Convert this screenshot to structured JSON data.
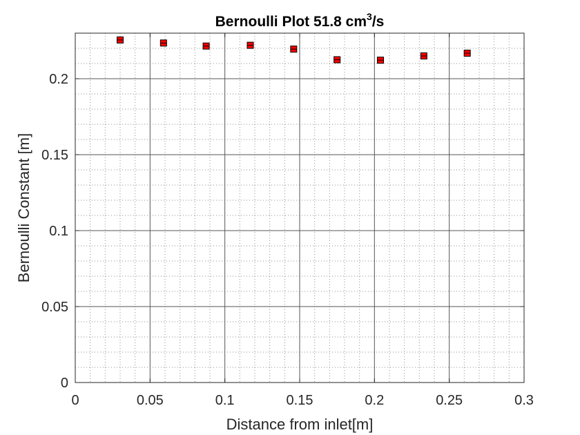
{
  "chart_data": {
    "type": "scatter",
    "title": "Bernoulli Plot 51.8 cm",
    "title_superscript": "3",
    "title_suffix": "/s",
    "xlabel": "Distance from inlet[m]",
    "ylabel": "Bernoulli Constant [m]",
    "xlim": [
      0,
      0.3
    ],
    "ylim": [
      0,
      0.23
    ],
    "x_ticks": [
      0,
      0.05,
      0.1,
      0.15,
      0.2,
      0.25,
      0.3
    ],
    "x_tick_labels": [
      "0",
      "0.05",
      "0.1",
      "0.15",
      "0.2",
      "0.25",
      "0.3"
    ],
    "y_ticks": [
      0,
      0.05,
      0.1,
      0.15,
      0.2
    ],
    "y_tick_labels": [
      "0",
      "0.05",
      "0.1",
      "0.15",
      "0.2"
    ],
    "grid": true,
    "minor_grid": true,
    "error_bars": true,
    "marker_color": "#ff0000",
    "errorbar_color": "#000000",
    "series": [
      {
        "x": [
          0.03,
          0.059,
          0.0875,
          0.117,
          0.146,
          0.175,
          0.204,
          0.233,
          0.262
        ],
        "y": [
          0.2255,
          0.2235,
          0.2215,
          0.222,
          0.2195,
          0.2125,
          0.2122,
          0.215,
          0.2168
        ],
        "err": [
          0.0018,
          0.0018,
          0.0018,
          0.0018,
          0.0018,
          0.0018,
          0.0018,
          0.0018,
          0.0018
        ]
      }
    ]
  }
}
